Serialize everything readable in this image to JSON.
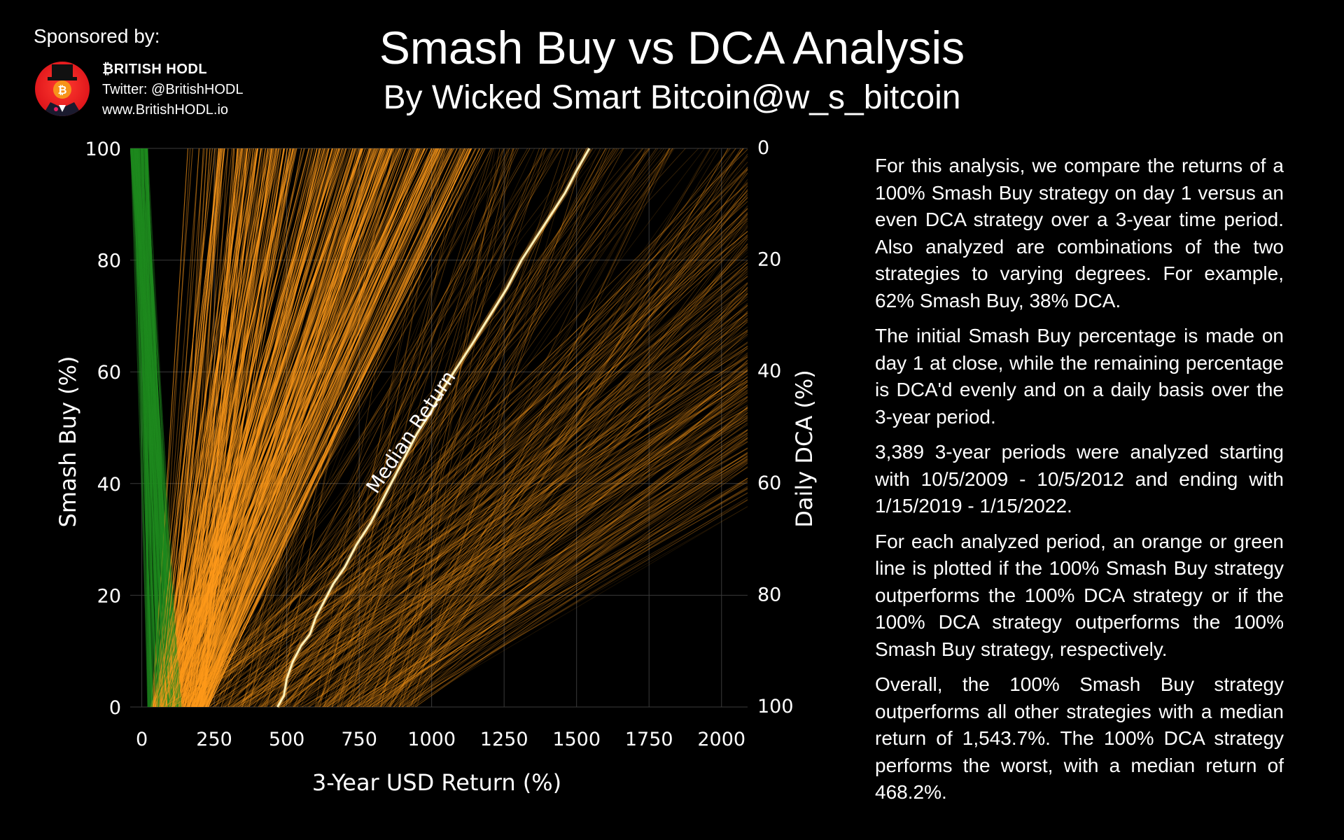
{
  "sponsor": {
    "label": "Sponsored by:",
    "name": "₿RITISH HODL",
    "twitter": "Twitter: @BritishHODL",
    "website": "www.BritishHODL.io"
  },
  "header": {
    "title": "Smash Buy vs DCA Analysis",
    "subtitle": "By Wicked Smart Bitcoin@w_s_bitcoin"
  },
  "description": [
    "For this analysis, we compare the returns of a 100% Smash Buy strategy on day 1 versus an even DCA strategy over a 3-year time period. Also analyzed are combinations of the two strategies to varying degrees. For example, 62% Smash Buy, 38% DCA.",
    "The initial Smash Buy percentage is made on day 1 at close, while the remaining percentage is DCA'd evenly and on a daily basis over the 3-year period.",
    "3,389 3-year periods were analyzed starting with 10/5/2009 - 10/5/2012 and ending with 1/15/2019 - 1/15/2022.",
    "For each analyzed period, an orange or green line is plotted if the 100% Smash Buy strategy outperforms the 100% DCA strategy or if the 100% DCA strategy outperforms the 100% Smash Buy strategy, respectively.",
    "Overall, the 100% Smash Buy strategy outperforms all other strategies with a median return of 1,543.7%. The 100% DCA strategy performs the worst, with a median return of 468.2%."
  ],
  "chart_data": {
    "type": "line",
    "xlabel": "3-Year USD Return (%)",
    "ylabel": "Smash Buy (%)",
    "y2label": "Daily DCA (%)",
    "xlim": [
      -40,
      2090
    ],
    "ylim": [
      0,
      100
    ],
    "xticks": [
      0,
      250,
      500,
      750,
      1000,
      1250,
      1500,
      1750,
      2000
    ],
    "yticks": [
      0,
      20,
      40,
      60,
      80,
      100
    ],
    "y2ticks": [
      0,
      20,
      40,
      60,
      80,
      100
    ],
    "grid": true,
    "colors": {
      "smash_wins": "#ff9a1a",
      "dca_wins": "#1f8a1f",
      "median": "#fff1b8"
    },
    "median_label": "Median Return",
    "median_series": {
      "name": "Median Return",
      "points": [
        [
          468,
          0
        ],
        [
          490,
          2
        ],
        [
          500,
          5
        ],
        [
          520,
          8
        ],
        [
          550,
          11
        ],
        [
          580,
          13
        ],
        [
          600,
          16
        ],
        [
          630,
          19
        ],
        [
          660,
          22
        ],
        [
          700,
          25
        ],
        [
          740,
          29
        ],
        [
          790,
          33
        ],
        [
          830,
          37
        ],
        [
          870,
          41
        ],
        [
          910,
          45
        ],
        [
          950,
          49
        ],
        [
          1000,
          53
        ],
        [
          1040,
          57
        ],
        [
          1090,
          61
        ],
        [
          1140,
          65
        ],
        [
          1200,
          70
        ],
        [
          1260,
          75
        ],
        [
          1310,
          80
        ],
        [
          1360,
          84
        ],
        [
          1410,
          88
        ],
        [
          1460,
          92
        ],
        [
          1500,
          96
        ],
        [
          1544,
          100
        ]
      ]
    },
    "background_periods": {
      "count": 3389,
      "classes": [
        "Smash Buy outperforms 100% DCA",
        "100% DCA outperforms Smash Buy"
      ]
    }
  }
}
